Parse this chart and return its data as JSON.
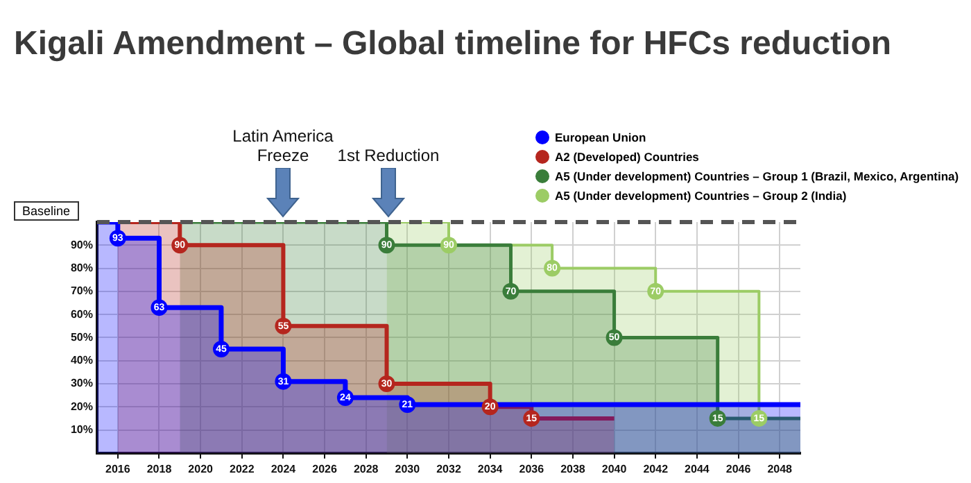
{
  "chart_data": {
    "type": "area",
    "title": "Kigali Amendment – Global timeline for HFCs reduction",
    "xlim": [
      2015,
      2049
    ],
    "xticks": [
      2016,
      2018,
      2020,
      2022,
      2024,
      2026,
      2028,
      2030,
      2032,
      2034,
      2036,
      2038,
      2040,
      2042,
      2044,
      2046,
      2048
    ],
    "ylim": [
      0,
      100
    ],
    "yticks": [
      {
        "value": 10,
        "label": "10%"
      },
      {
        "value": 20,
        "label": "20%"
      },
      {
        "value": 30,
        "label": "30%"
      },
      {
        "value": 40,
        "label": "40%"
      },
      {
        "value": 50,
        "label": "50%"
      },
      {
        "value": 60,
        "label": "60%"
      },
      {
        "value": 70,
        "label": "70%"
      },
      {
        "value": 80,
        "label": "80%"
      },
      {
        "value": 90,
        "label": "90%"
      }
    ],
    "grid": true,
    "legend": "top right",
    "series": [
      {
        "name": "European Union",
        "color": "#0000ff",
        "x": [
          2015,
          2016,
          2016,
          2018,
          2018,
          2021,
          2021,
          2024,
          2024,
          2027,
          2027,
          2030,
          2030,
          2049
        ],
        "values": [
          100,
          100,
          93,
          93,
          63,
          63,
          45,
          45,
          31,
          31,
          24,
          24,
          21,
          21
        ],
        "value_labels": [
          null,
          null,
          "93",
          null,
          "63",
          null,
          "45",
          null,
          "31",
          null,
          "24",
          null,
          "21",
          null
        ]
      },
      {
        "name": "A2 (Developed) Countries",
        "color": "#b5261e",
        "x": [
          2016,
          2019,
          2019,
          2024,
          2024,
          2029,
          2029,
          2034,
          2034,
          2036,
          2036,
          2040
        ],
        "values": [
          100,
          100,
          90,
          90,
          55,
          55,
          30,
          30,
          20,
          20,
          15,
          15
        ],
        "value_labels": [
          null,
          null,
          "90",
          null,
          "55",
          null,
          "30",
          null,
          "20",
          null,
          "15",
          null
        ]
      },
      {
        "name": "A5 (Under development) Countries – Group 1 (Brazil, Mexico, Argentina)",
        "color": "#3a7d3a",
        "x": [
          2019,
          2029,
          2029,
          2035,
          2035,
          2040,
          2040,
          2045,
          2045,
          2049
        ],
        "values": [
          100,
          100,
          90,
          90,
          70,
          70,
          50,
          50,
          15,
          15
        ],
        "value_labels": [
          null,
          null,
          "90",
          null,
          "70",
          null,
          "50",
          null,
          "15",
          null
        ]
      },
      {
        "name": "A5 (Under development) Countries – Group 2 (India)",
        "color": "#9ccc65",
        "x": [
          2029,
          2032,
          2032,
          2037,
          2037,
          2042,
          2042,
          2047,
          2047,
          2049
        ],
        "values": [
          100,
          100,
          90,
          90,
          80,
          80,
          70,
          70,
          15,
          15
        ],
        "value_labels": [
          null,
          null,
          "90",
          null,
          "80",
          null,
          "70",
          null,
          "15",
          null
        ]
      }
    ],
    "ref_lines": [
      {
        "axis": "y",
        "value": 100,
        "label": "Baseline",
        "line_style": "dashed",
        "color": "#555555"
      }
    ],
    "annotations": [
      "Latin America Freeze",
      "1st Reduction"
    ]
  }
}
